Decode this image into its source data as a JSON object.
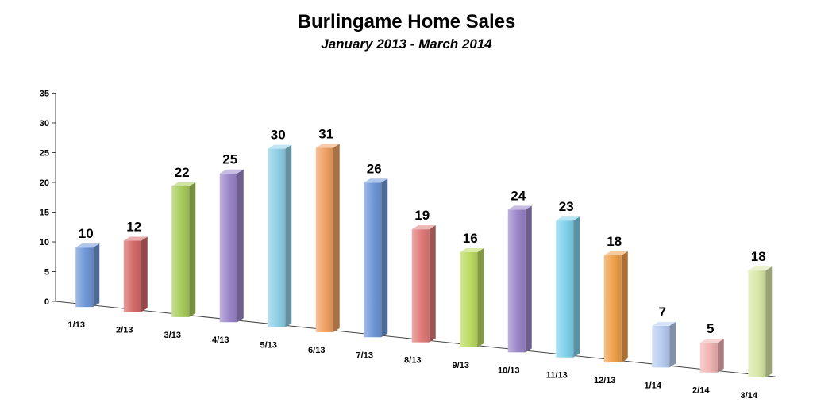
{
  "title": "Burlingame Home Sales",
  "subtitle": "January 2013 - March 2014",
  "chart_data": {
    "type": "bar",
    "title": "Burlingame Home Sales",
    "subtitle": "January 2013 - March 2014",
    "categories": [
      "1/13",
      "2/13",
      "3/13",
      "4/13",
      "5/13",
      "6/13",
      "7/13",
      "8/13",
      "9/13",
      "10/13",
      "11/13",
      "12/13",
      "1/14",
      "2/14",
      "3/14"
    ],
    "values": [
      10,
      12,
      22,
      25,
      30,
      31,
      26,
      19,
      16,
      24,
      23,
      18,
      7,
      5,
      18
    ],
    "ylim": [
      0,
      35
    ],
    "yticks": [
      0,
      5,
      10,
      15,
      20,
      25,
      30,
      35
    ],
    "xlabel": "",
    "ylabel": "",
    "grid": false,
    "colors": [
      "#6f97d8",
      "#d46a6a",
      "#a8cc5c",
      "#9b86c9",
      "#8fd0e6",
      "#f0a062",
      "#6f97d8",
      "#e07a78",
      "#bcdc62",
      "#9b86c9",
      "#7fd2ec",
      "#f0a04a",
      "#b9cdf2",
      "#f2b3b3",
      "#d9e8a8"
    ]
  }
}
